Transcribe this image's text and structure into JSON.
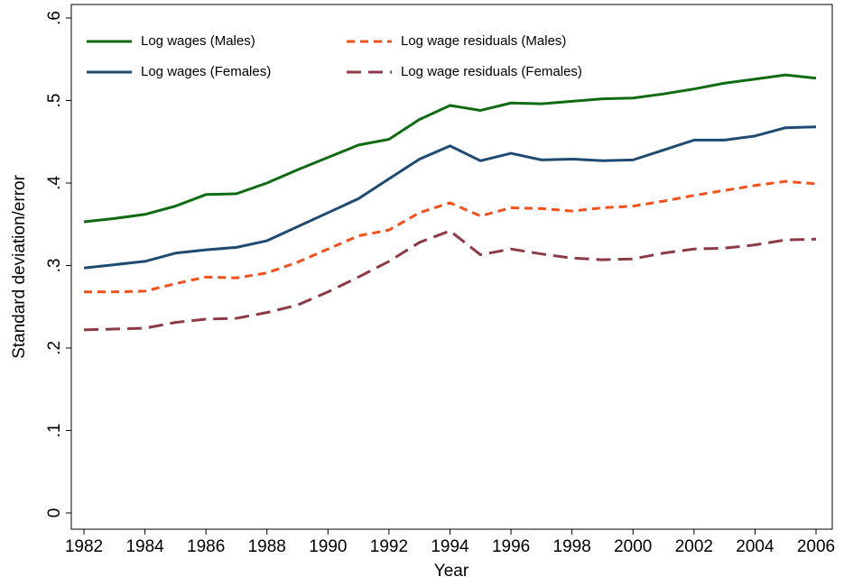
{
  "chart_data": {
    "type": "line",
    "x_label": "Year",
    "y_label": "Standard deviation/error",
    "x": [
      1982,
      1983,
      1984,
      1985,
      1986,
      1987,
      1988,
      1989,
      1990,
      1991,
      1992,
      1993,
      1994,
      1995,
      1996,
      1997,
      1998,
      1999,
      2000,
      2001,
      2002,
      2003,
      2004,
      2005,
      2006
    ],
    "series": [
      {
        "name": "Log wages (Males)",
        "color": "#0f6b12",
        "style": "solid",
        "values": [
          0.353,
          0.357,
          0.362,
          0.372,
          0.386,
          0.387,
          0.4,
          0.416,
          0.431,
          0.446,
          0.453,
          0.477,
          0.494,
          0.488,
          0.497,
          0.496,
          0.499,
          0.502,
          0.503,
          0.508,
          0.514,
          0.521,
          0.526,
          0.531,
          0.527
        ]
      },
      {
        "name": "Log wages (Females)",
        "color": "#1f4a72",
        "style": "solid",
        "values": [
          0.297,
          0.301,
          0.305,
          0.315,
          0.319,
          0.322,
          0.33,
          0.347,
          0.364,
          0.381,
          0.405,
          0.429,
          0.445,
          0.427,
          0.436,
          0.428,
          0.429,
          0.427,
          0.428,
          0.44,
          0.452,
          0.452,
          0.457,
          0.467,
          0.468
        ]
      },
      {
        "name": "Log wage residuals (Males)",
        "color": "#f4501c",
        "style": "shortdash",
        "values": [
          0.268,
          0.268,
          0.269,
          0.278,
          0.286,
          0.285,
          0.291,
          0.304,
          0.32,
          0.336,
          0.343,
          0.364,
          0.376,
          0.36,
          0.37,
          0.369,
          0.366,
          0.37,
          0.372,
          0.378,
          0.385,
          0.391,
          0.397,
          0.402,
          0.399
        ]
      },
      {
        "name": "Log wage residuals (Females)",
        "color": "#8c3a44",
        "style": "dash",
        "values": [
          0.222,
          0.223,
          0.224,
          0.231,
          0.235,
          0.236,
          0.243,
          0.252,
          0.268,
          0.286,
          0.305,
          0.328,
          0.342,
          0.313,
          0.32,
          0.314,
          0.309,
          0.307,
          0.308,
          0.315,
          0.32,
          0.321,
          0.325,
          0.331,
          0.332
        ]
      }
    ],
    "xlim": [
      1982,
      2006
    ],
    "xticks": [
      1982,
      1984,
      1986,
      1988,
      1990,
      1992,
      1994,
      1996,
      1998,
      2000,
      2002,
      2004,
      2006
    ],
    "ylim": [
      0,
      0.6
    ],
    "yticks": [
      0,
      {
        "value": 0.1,
        "label": ".1"
      },
      {
        "value": 0.2,
        "label": ".2"
      },
      {
        "value": 0.3,
        "label": ".3"
      },
      {
        "value": 0.4,
        "label": ".4"
      },
      {
        "value": 0.5,
        "label": ".5"
      },
      {
        "value": 0.6,
        "label": ".6"
      }
    ],
    "grid": false,
    "legend_position": "top-left"
  }
}
